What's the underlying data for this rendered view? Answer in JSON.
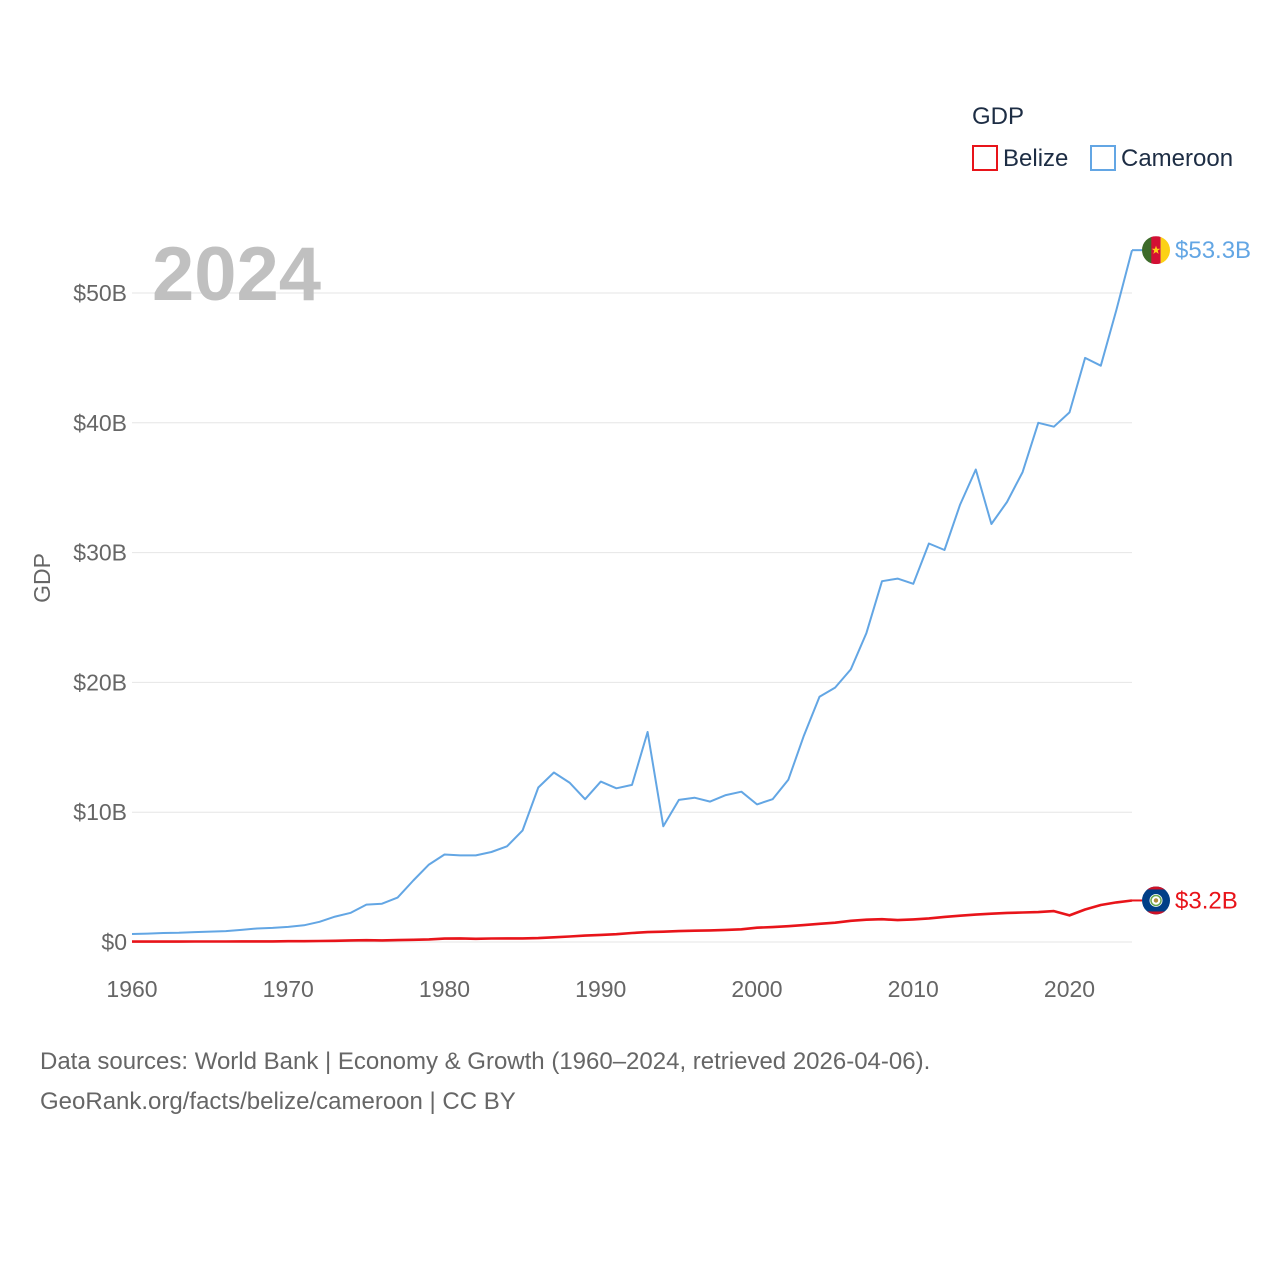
{
  "chart_data": {
    "type": "line",
    "title": "GDP",
    "ylabel": "GDP",
    "xlabel": "",
    "current_year": "2024",
    "x_ticks": [
      "1960",
      "1970",
      "1980",
      "1990",
      "2000",
      "2010",
      "2020"
    ],
    "y_ticks": [
      {
        "value": 0,
        "label": "$0"
      },
      {
        "value": 10,
        "label": "$10B"
      },
      {
        "value": 20,
        "label": "$20B"
      },
      {
        "value": 30,
        "label": "$30B"
      },
      {
        "value": 40,
        "label": "$40B"
      },
      {
        "value": 50,
        "label": "$50B"
      }
    ],
    "xlim": [
      1960,
      2024
    ],
    "ylim": [
      0,
      50
    ],
    "unit": "USD billions",
    "legend_placement": "top-right",
    "series": [
      {
        "name": "Belize",
        "color": "#e8141a",
        "end_label": "$3.2B",
        "x": [
          1960,
          1961,
          1962,
          1963,
          1964,
          1965,
          1966,
          1967,
          1968,
          1969,
          1970,
          1971,
          1972,
          1973,
          1974,
          1975,
          1976,
          1977,
          1978,
          1979,
          1980,
          1981,
          1982,
          1983,
          1984,
          1985,
          1986,
          1987,
          1988,
          1989,
          1990,
          1991,
          1992,
          1993,
          1994,
          1995,
          1996,
          1997,
          1998,
          1999,
          2000,
          2001,
          2002,
          2003,
          2004,
          2005,
          2006,
          2007,
          2008,
          2009,
          2010,
          2011,
          2012,
          2013,
          2014,
          2015,
          2016,
          2017,
          2018,
          2019,
          2020,
          2021,
          2022,
          2023,
          2024
        ],
        "values": [
          0.03,
          0.03,
          0.03,
          0.03,
          0.04,
          0.04,
          0.04,
          0.05,
          0.05,
          0.05,
          0.06,
          0.06,
          0.08,
          0.09,
          0.12,
          0.14,
          0.12,
          0.15,
          0.17,
          0.2,
          0.26,
          0.28,
          0.25,
          0.27,
          0.28,
          0.28,
          0.3,
          0.36,
          0.42,
          0.49,
          0.55,
          0.6,
          0.69,
          0.76,
          0.79,
          0.84,
          0.87,
          0.89,
          0.93,
          0.98,
          1.1,
          1.15,
          1.22,
          1.3,
          1.4,
          1.49,
          1.63,
          1.72,
          1.76,
          1.69,
          1.74,
          1.82,
          1.93,
          2.03,
          2.11,
          2.18,
          2.24,
          2.27,
          2.3,
          2.38,
          2.05,
          2.5,
          2.85,
          3.05,
          3.2
        ]
      },
      {
        "name": "Cameroon",
        "color": "#63a6e4",
        "end_label": "$53.3B",
        "x": [
          1960,
          1961,
          1962,
          1963,
          1964,
          1965,
          1966,
          1967,
          1968,
          1969,
          1970,
          1971,
          1972,
          1973,
          1974,
          1975,
          1976,
          1977,
          1978,
          1979,
          1980,
          1981,
          1982,
          1983,
          1984,
          1985,
          1986,
          1987,
          1988,
          1989,
          1990,
          1991,
          1992,
          1993,
          1994,
          1995,
          1996,
          1997,
          1998,
          1999,
          2000,
          2001,
          2002,
          2003,
          2004,
          2005,
          2006,
          2007,
          2008,
          2009,
          2010,
          2011,
          2012,
          2013,
          2014,
          2015,
          2016,
          2017,
          2018,
          2019,
          2020,
          2021,
          2022,
          2023,
          2024
        ],
        "values": [
          0.62,
          0.65,
          0.69,
          0.71,
          0.76,
          0.8,
          0.84,
          0.93,
          1.04,
          1.09,
          1.16,
          1.29,
          1.56,
          1.96,
          2.25,
          2.88,
          2.95,
          3.42,
          4.74,
          5.96,
          6.74,
          6.67,
          6.67,
          6.93,
          7.37,
          8.6,
          11.9,
          13.06,
          12.28,
          11.0,
          12.36,
          11.84,
          12.1,
          16.18,
          8.91,
          10.95,
          11.12,
          10.82,
          11.32,
          11.58,
          10.6,
          11.0,
          12.5,
          15.9,
          18.9,
          19.6,
          21.0,
          23.8,
          27.8,
          28.0,
          27.6,
          30.7,
          30.2,
          33.7,
          36.4,
          32.2,
          33.9,
          36.2,
          40.0,
          39.7,
          40.8,
          45.0,
          44.4,
          48.7,
          53.3
        ]
      }
    ]
  },
  "legend": {
    "title": "GDP",
    "items": [
      "Belize",
      "Cameroon"
    ]
  },
  "footer": {
    "line1": "Data sources: World Bank | Economy & Growth (1960–2024, retrieved 2026-04-06).",
    "line2": "GeoRank.org/facts/belize/cameroon | CC BY"
  },
  "colors": {
    "belize": "#e8141a",
    "cameroon": "#63a6e4",
    "grid": "#e6e6e6",
    "year_watermark": "#c0c0c0",
    "tick_text": "#666666"
  },
  "icons": {
    "belize_flag": "belize-flag-icon",
    "cameroon_flag": "cameroon-flag-icon"
  }
}
